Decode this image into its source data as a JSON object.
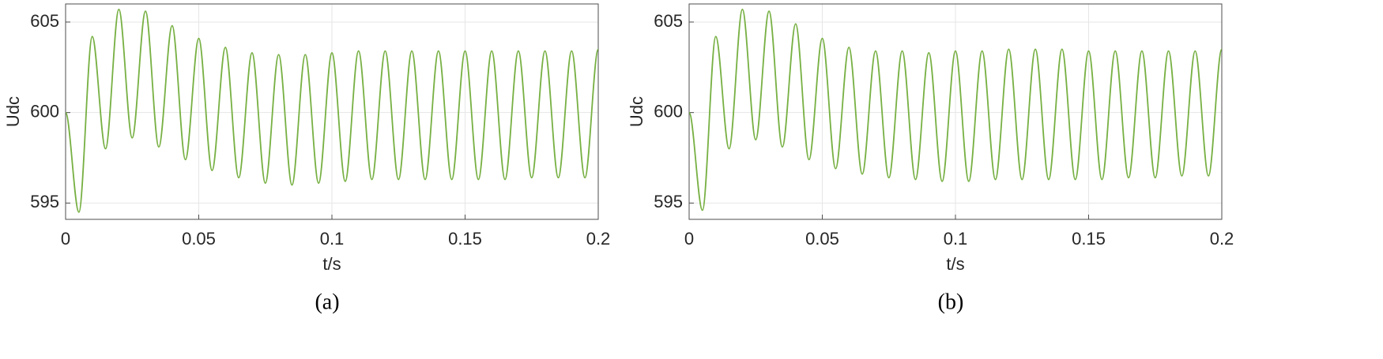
{
  "chart_data": [
    {
      "type": "line",
      "caption": "(a)",
      "x_label": "t/s",
      "y_label": "Udc",
      "xlim": [
        0,
        0.2
      ],
      "ylim": [
        594.1,
        606
      ],
      "xticks": [
        0,
        0.05,
        0.1,
        0.15,
        0.2
      ],
      "yticks": [
        595,
        600,
        605
      ],
      "grid": true,
      "x": [
        0,
        0.005,
        0.01,
        0.015,
        0.02,
        0.025,
        0.03,
        0.035,
        0.04,
        0.045,
        0.05,
        0.055,
        0.06,
        0.065,
        0.07,
        0.075,
        0.08,
        0.085,
        0.09,
        0.095,
        0.1,
        0.105,
        0.11,
        0.115,
        0.12,
        0.125,
        0.13,
        0.135,
        0.14,
        0.145,
        0.15,
        0.155,
        0.16,
        0.165,
        0.17,
        0.175,
        0.18,
        0.185,
        0.19,
        0.195,
        0.2
      ],
      "series": [
        {
          "color": "#77b043",
          "values": [
            600,
            594.5,
            604.2,
            598,
            605.7,
            598.6,
            605.6,
            598.1,
            604.8,
            597.4,
            604.1,
            596.8,
            603.6,
            596.4,
            603.3,
            596.1,
            603.2,
            596,
            603.2,
            596.1,
            603.3,
            596.2,
            603.4,
            596.3,
            603.4,
            596.3,
            603.4,
            596.3,
            603.4,
            596.3,
            603.4,
            596.3,
            603.4,
            596.3,
            603.4,
            596.4,
            603.4,
            596.4,
            603.4,
            596.4,
            603.5
          ]
        }
      ]
    },
    {
      "type": "line",
      "caption": "(b)",
      "x_label": "t/s",
      "y_label": "Udc",
      "xlim": [
        0,
        0.2
      ],
      "ylim": [
        594.1,
        606
      ],
      "xticks": [
        0,
        0.05,
        0.1,
        0.15,
        0.2
      ],
      "yticks": [
        595,
        600,
        605
      ],
      "grid": true,
      "x": [
        0,
        0.005,
        0.01,
        0.015,
        0.02,
        0.025,
        0.03,
        0.035,
        0.04,
        0.045,
        0.05,
        0.055,
        0.06,
        0.065,
        0.07,
        0.075,
        0.08,
        0.085,
        0.09,
        0.095,
        0.1,
        0.105,
        0.11,
        0.115,
        0.12,
        0.125,
        0.13,
        0.135,
        0.14,
        0.145,
        0.15,
        0.155,
        0.16,
        0.165,
        0.17,
        0.175,
        0.18,
        0.185,
        0.19,
        0.195,
        0.2
      ],
      "series": [
        {
          "color": "#77b043",
          "values": [
            600,
            594.6,
            604.2,
            598,
            605.7,
            598.5,
            605.6,
            598.1,
            604.9,
            597.4,
            604.1,
            596.9,
            603.6,
            596.6,
            603.4,
            596.4,
            603.4,
            596.3,
            603.3,
            596.2,
            603.4,
            596.2,
            603.4,
            596.3,
            603.5,
            596.3,
            603.5,
            596.3,
            603.5,
            596.3,
            603.4,
            596.3,
            603.4,
            596.4,
            603.4,
            596.4,
            603.4,
            596.5,
            603.4,
            596.5,
            603.5
          ]
        }
      ]
    }
  ]
}
